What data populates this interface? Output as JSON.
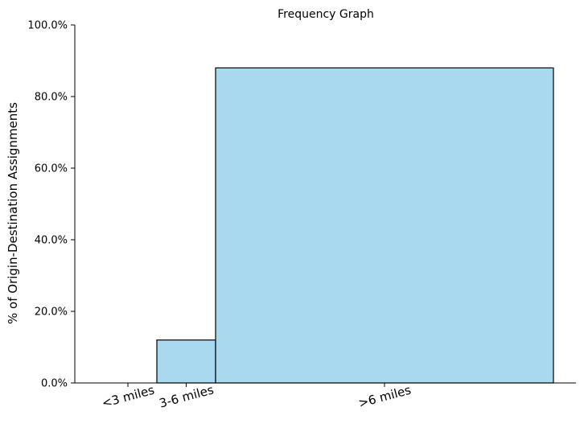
{
  "chart_data": {
    "type": "bar",
    "title": "Frequency Graph",
    "xlabel": "",
    "ylabel": "% of Origin-Destination Assignments",
    "ylim": [
      0,
      100
    ],
    "yticks": [
      "0.0%",
      "20.0%",
      "40.0%",
      "60.0%",
      "80.0%",
      "100.0%"
    ],
    "ytick_values": [
      0,
      20,
      40,
      60,
      80,
      100
    ],
    "categories": [
      "<3 miles",
      "3-6 miles",
      ">6 miles"
    ],
    "values": [
      0.0,
      12.0,
      88.0
    ],
    "grid": false,
    "bar_color": "#a8d9ef",
    "edge_color": "#000000"
  }
}
